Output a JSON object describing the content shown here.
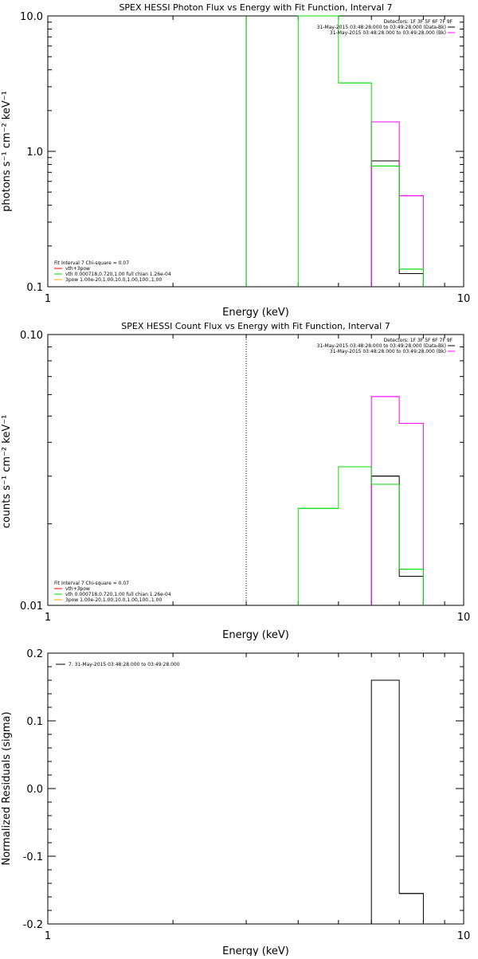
{
  "colors": {
    "data": "#000000",
    "background": "#ff00ff",
    "model": "#00e000",
    "vth": "#00e000",
    "3pow": "#ffa500",
    "vth3pow": "#ff0000",
    "marker": "#00b000"
  },
  "chart_data": [
    {
      "type": "line",
      "title": "SPEX HESSI Photon Flux vs Energy with Fit Function, Interval 7",
      "xlabel": "Energy (keV)",
      "ylabel": "photons s⁻¹ cm⁻² keV⁻¹",
      "xscale": "log",
      "yscale": "log",
      "xlim": [
        1,
        10
      ],
      "ylim": [
        0.1,
        10
      ],
      "xticks": [
        "1",
        "10"
      ],
      "yticks": [
        "0.1",
        "1.0",
        "10.0"
      ],
      "yticks_values": [
        0.1,
        1,
        10
      ],
      "energy_marker": 3,
      "marker_style": "solid",
      "detectors_label": "Detectors: 1F 3F 5F 6F 7F 9F",
      "series": [
        {
          "name": "31-May-2015 03:48:28.000 to 03:49:28.000 (Data-Bk)",
          "color_key": "data",
          "edges": [
            6,
            7,
            8
          ],
          "values": [
            0.85,
            0.125
          ]
        },
        {
          "name": "31-May-2015 03:48:28.000 to 03:49:28.000 (Bk)",
          "color_key": "background",
          "edges": [
            6,
            7,
            8
          ],
          "values": [
            1.65,
            0.47
          ]
        },
        {
          "color_key": "model",
          "edges": [
            4,
            5,
            6,
            7,
            8
          ],
          "values": [
            10,
            3.2,
            0.78,
            0.135
          ]
        }
      ],
      "fit_legend": {
        "header": "Fit Interval 7   Chi-square = 0.07",
        "items": [
          {
            "label": "vth+3pow",
            "color_key": "vth3pow"
          },
          {
            "label": "vth 0.000718,0.720,1.00  full chian 1.26e-04",
            "color_key": "vth"
          },
          {
            "label": "3pow 1.00e-20,1.00,10.0,1.00,100.,1.00",
            "color_key": "3pow"
          }
        ]
      }
    },
    {
      "type": "line",
      "title": "SPEX HESSI Count Flux vs Energy with Fit Function, Interval 7",
      "xlabel": "Energy (keV)",
      "ylabel": "counts s⁻¹ cm⁻² keV⁻¹",
      "xscale": "log",
      "yscale": "log",
      "xlim": [
        1,
        10
      ],
      "ylim": [
        0.01,
        0.1
      ],
      "xticks": [
        "1",
        "10"
      ],
      "yticks": [
        "0.01",
        "0.10"
      ],
      "yticks_values": [
        0.01,
        0.1
      ],
      "energy_marker": 3,
      "marker_style": "dotted",
      "detectors_label": "Detectors: 1F 3F 5F 6F 7F 9F",
      "series": [
        {
          "name": "31-May-2015 03:48:28.000 to 03:49:28.000 (Data-Bk)",
          "color_key": "data",
          "edges": [
            6,
            7,
            8
          ],
          "values": [
            0.03,
            0.0128
          ]
        },
        {
          "name": "31-May-2015 03:48:28.000 to 03:49:28.000 (Bk)",
          "color_key": "background",
          "edges": [
            6,
            7,
            8
          ],
          "values": [
            0.059,
            0.047
          ]
        },
        {
          "color_key": "model",
          "edges": [
            4,
            5,
            6,
            7,
            8
          ],
          "values": [
            0.0228,
            0.0325,
            0.028,
            0.0136
          ]
        }
      ],
      "fit_legend": {
        "header": "Fit Interval 7   Chi-square = 0.07",
        "items": [
          {
            "label": "vth+3pow",
            "color_key": "vth3pow"
          },
          {
            "label": "vth 0.000718,0.720,1.00  full chian 1.26e-04",
            "color_key": "vth"
          },
          {
            "label": "3pow 1.00e-20,1.00,10.0,1.00,100.,1.00",
            "color_key": "3pow"
          }
        ]
      }
    },
    {
      "type": "line",
      "title": "",
      "xlabel": "Energy (keV)",
      "ylabel": "Normalized Residuals (sigma)",
      "xscale": "log",
      "yscale": "linear",
      "xlim": [
        1,
        10
      ],
      "ylim": [
        -0.2,
        0.2
      ],
      "xticks": [
        "1",
        "10"
      ],
      "yticks": [
        "0.2",
        "0.1",
        "0.0",
        "-0.1",
        "-0.2"
      ],
      "yticks_values": [
        0.2,
        0.1,
        0,
        -0.1,
        -0.2
      ],
      "series": [
        {
          "name": "7. 31-May-2015 03:48:28.000 to 03:49:28.000",
          "color_key": "data",
          "edges": [
            6,
            7,
            8
          ],
          "values": [
            0.16,
            -0.155
          ],
          "baseline": -0.2
        }
      ]
    }
  ]
}
